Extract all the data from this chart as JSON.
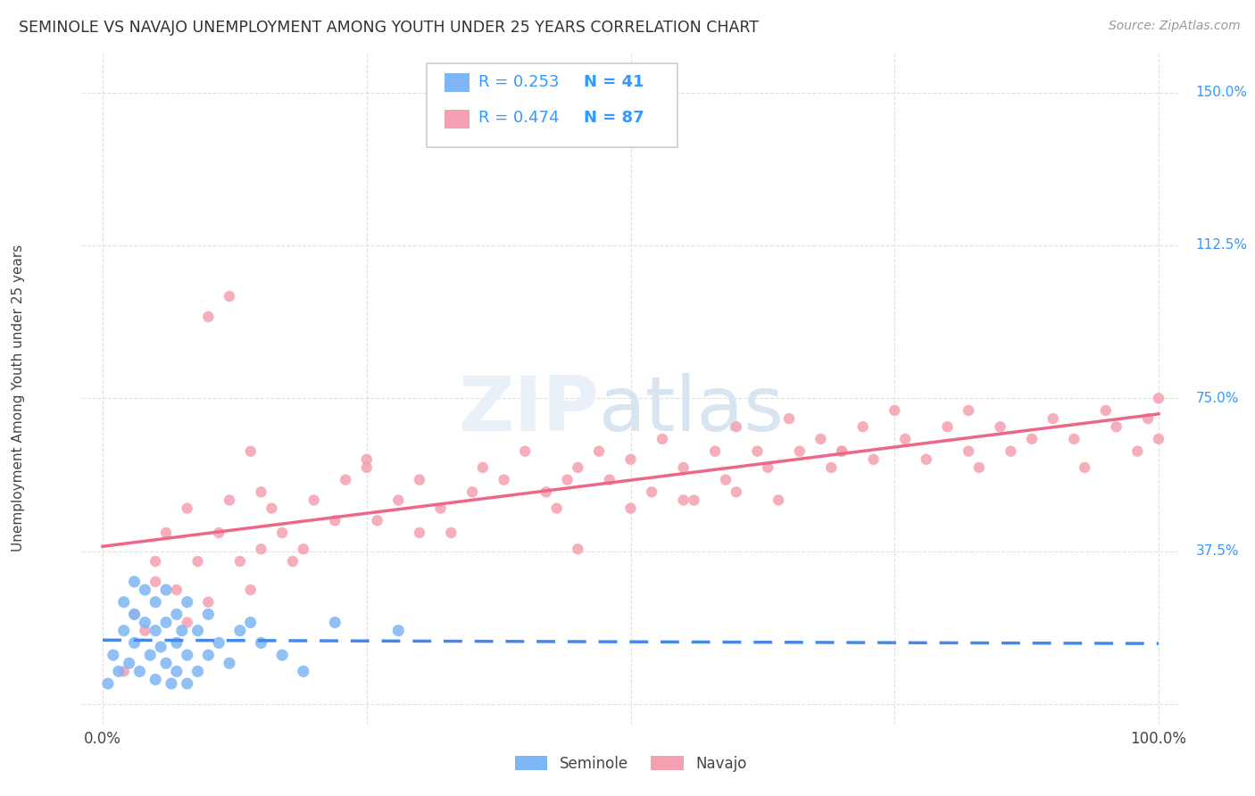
{
  "title": "SEMINOLE VS NAVAJO UNEMPLOYMENT AMONG YOUTH UNDER 25 YEARS CORRELATION CHART",
  "source": "Source: ZipAtlas.com",
  "ylabel": "Unemployment Among Youth under 25 years",
  "xlim": [
    -2,
    102
  ],
  "ylim": [
    -5,
    160
  ],
  "ytick_labels_right": [
    "150.0%",
    "112.5%",
    "75.0%",
    "37.5%"
  ],
  "ytick_values_right": [
    150,
    112.5,
    75,
    37.5
  ],
  "seminole_R": "R = 0.253",
  "seminole_N": "N = 41",
  "navajo_R": "R = 0.474",
  "navajo_N": "N = 87",
  "seminole_color": "#7EB5F5",
  "navajo_color": "#F5A0B0",
  "seminole_line_color": "#4488EE",
  "navajo_line_color": "#EE6688",
  "seminole_dash_color": "#AACCEE",
  "background_color": "#FFFFFF",
  "grid_color": "#E0E0E0",
  "seminole_x": [
    0.5,
    1,
    1.5,
    2,
    2,
    2.5,
    3,
    3,
    3,
    3.5,
    4,
    4,
    4.5,
    5,
    5,
    5,
    5.5,
    6,
    6,
    6,
    6.5,
    7,
    7,
    7,
    7.5,
    8,
    8,
    8,
    9,
    9,
    10,
    10,
    11,
    12,
    13,
    14,
    15,
    17,
    19,
    22,
    28
  ],
  "seminole_y": [
    5,
    12,
    8,
    18,
    25,
    10,
    15,
    22,
    30,
    8,
    20,
    28,
    12,
    6,
    18,
    25,
    14,
    10,
    20,
    28,
    5,
    15,
    22,
    8,
    18,
    12,
    25,
    5,
    18,
    8,
    22,
    12,
    15,
    10,
    18,
    20,
    15,
    12,
    8,
    20,
    18
  ],
  "navajo_x": [
    2,
    3,
    4,
    5,
    5,
    6,
    7,
    8,
    8,
    9,
    10,
    11,
    12,
    13,
    14,
    15,
    15,
    16,
    17,
    18,
    19,
    20,
    22,
    23,
    25,
    26,
    28,
    30,
    32,
    33,
    35,
    36,
    38,
    40,
    42,
    43,
    44,
    45,
    47,
    48,
    50,
    50,
    52,
    53,
    55,
    56,
    58,
    59,
    60,
    60,
    62,
    63,
    64,
    65,
    66,
    68,
    69,
    70,
    72,
    73,
    75,
    76,
    78,
    80,
    82,
    83,
    85,
    86,
    88,
    90,
    92,
    93,
    95,
    96,
    98,
    99,
    100,
    100,
    82,
    10,
    12,
    14,
    25,
    30,
    45,
    55,
    70
  ],
  "navajo_y": [
    8,
    22,
    18,
    30,
    35,
    42,
    28,
    20,
    48,
    35,
    25,
    42,
    50,
    35,
    28,
    38,
    52,
    48,
    42,
    35,
    38,
    50,
    45,
    55,
    60,
    45,
    50,
    55,
    48,
    42,
    52,
    58,
    55,
    62,
    52,
    48,
    55,
    58,
    62,
    55,
    60,
    48,
    52,
    65,
    58,
    50,
    62,
    55,
    68,
    52,
    62,
    58,
    50,
    70,
    62,
    65,
    58,
    62,
    68,
    60,
    72,
    65,
    60,
    68,
    62,
    58,
    68,
    62,
    65,
    70,
    65,
    58,
    72,
    68,
    62,
    70,
    65,
    75,
    72,
    95,
    100,
    62,
    58,
    42,
    38,
    50,
    62
  ]
}
